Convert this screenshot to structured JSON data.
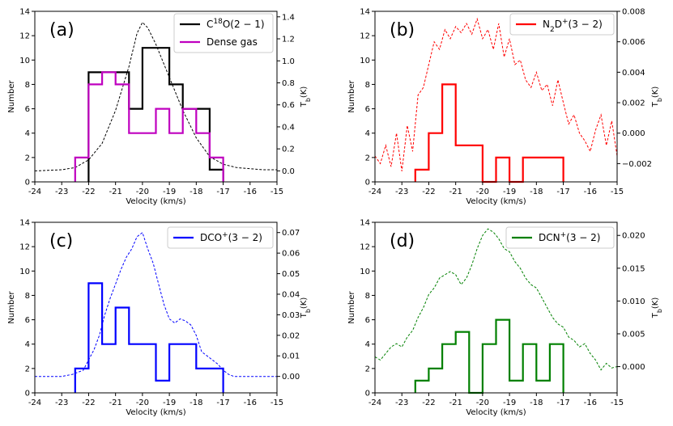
{
  "chart_data": [
    {
      "type": "histogram+line",
      "panel": "(a)",
      "xlabel": "Velocity (km/s)",
      "ylabel": "Number",
      "y2label": "T_b(K)",
      "xlim": [
        -24,
        -15
      ],
      "ylim": [
        0,
        14
      ],
      "y2lim": [
        -0.1,
        1.45
      ],
      "xticks": [
        "-24",
        "-23",
        "-22",
        "-21",
        "-20",
        "-19",
        "-18",
        "-17",
        "-16",
        "-15"
      ],
      "yticks": [
        "0",
        "2",
        "4",
        "6",
        "8",
        "10",
        "12",
        "14"
      ],
      "y2ticks": [
        "0.0",
        "0.2",
        "0.4",
        "0.6",
        "0.8",
        "1.0",
        "1.2",
        "1.4"
      ],
      "hist": [
        {
          "name": "C18O(2−1)",
          "color": "#000000",
          "edges": [
            -22,
            -21,
            -20.5,
            -20,
            -19,
            -18.5,
            -17.5,
            -17
          ],
          "values": [
            9,
            9,
            6,
            11,
            8,
            6,
            1
          ]
        },
        {
          "name": "Dense gas",
          "color": "#bf00bf",
          "edges": [
            -22.5,
            -22,
            -21.5,
            -21,
            -20.5,
            -20,
            -19.5,
            -19,
            -18.5,
            -18,
            -17.5,
            -17
          ],
          "values": [
            2,
            8,
            9,
            8,
            4,
            4,
            6,
            4,
            6,
            4,
            2
          ]
        }
      ],
      "line": {
        "name": "C18O spectrum",
        "color": "#000000",
        "x": [
          -24,
          -23,
          -22.5,
          -22,
          -21.5,
          -21,
          -20.5,
          -20.2,
          -20,
          -19.8,
          -19.5,
          -19,
          -18.5,
          -18,
          -17.5,
          -17,
          -16.5,
          -16,
          -15.5,
          -15
        ],
        "y": [
          0.0,
          0.01,
          0.03,
          0.1,
          0.25,
          0.55,
          0.95,
          1.25,
          1.35,
          1.3,
          1.15,
          0.85,
          0.55,
          0.3,
          0.13,
          0.06,
          0.03,
          0.02,
          0.01,
          0.01
        ]
      },
      "legend": [
        {
          "label_main": "C",
          "label_sup": "18",
          "label_rest": "O(2 − 1)",
          "color": "#000000"
        },
        {
          "label_main": "Dense gas",
          "label_sup": "",
          "label_rest": "",
          "color": "#bf00bf"
        }
      ]
    },
    {
      "type": "histogram+line",
      "panel": "(b)",
      "xlabel": "Velocity (km/s)",
      "ylabel": "Number",
      "y2label": "T_b(K)",
      "xlim": [
        -24,
        -15
      ],
      "ylim": [
        0,
        14
      ],
      "y2lim": [
        -0.0032,
        0.008
      ],
      "xticks": [
        "-24",
        "-23",
        "-22",
        "-21",
        "-20",
        "-19",
        "-18",
        "-17",
        "-16",
        "-15"
      ],
      "yticks": [
        "0",
        "2",
        "4",
        "6",
        "8",
        "10",
        "12",
        "14"
      ],
      "y2ticks": [
        "−0.002",
        "0.000",
        "0.002",
        "0.004",
        "0.006",
        "0.008"
      ],
      "hist": [
        {
          "name": "N2D+(3−2)",
          "color": "#ff0000",
          "edges": [
            -22.5,
            -22,
            -21.5,
            -21,
            -20,
            -19.5,
            -19,
            -18.5,
            -17
          ],
          "values": [
            1,
            4,
            8,
            3,
            0,
            2,
            0,
            2
          ]
        }
      ],
      "line": {
        "name": "N2D+ spectrum",
        "color": "#ff0000",
        "x": [
          -24,
          -23.8,
          -23.6,
          -23.4,
          -23.2,
          -23,
          -22.8,
          -22.6,
          -22.4,
          -22.2,
          -22,
          -21.8,
          -21.6,
          -21.4,
          -21.2,
          -21,
          -20.8,
          -20.6,
          -20.4,
          -20.2,
          -20,
          -19.8,
          -19.6,
          -19.4,
          -19.2,
          -19,
          -18.8,
          -18.6,
          -18.4,
          -18.2,
          -18,
          -17.8,
          -17.6,
          -17.4,
          -17.2,
          -17,
          -16.8,
          -16.6,
          -16.4,
          -16.2,
          -16,
          -15.8,
          -15.6,
          -15.4,
          -15.2,
          -15
        ],
        "y": [
          -0.0015,
          -0.002,
          -0.0008,
          -0.0022,
          0.0,
          -0.0025,
          0.0005,
          -0.0012,
          0.0025,
          0.003,
          0.0045,
          0.006,
          0.0055,
          0.0068,
          0.0062,
          0.007,
          0.0066,
          0.0072,
          0.0065,
          0.0075,
          0.0062,
          0.0068,
          0.0055,
          0.0072,
          0.005,
          0.0062,
          0.0045,
          0.0048,
          0.0035,
          0.003,
          0.004,
          0.0028,
          0.0032,
          0.0018,
          0.0035,
          0.002,
          0.0006,
          0.0012,
          0.0,
          -0.0005,
          -0.0012,
          0.0002,
          0.0012,
          -0.0008,
          0.0008,
          -0.0015
        ]
      },
      "legend": [
        {
          "label_main": "N",
          "label_sub": "2",
          "label_rest": "D",
          "label_sup": "+",
          "label_end": "(3 − 2)",
          "color": "#ff0000"
        }
      ]
    },
    {
      "type": "histogram+line",
      "panel": "(c)",
      "xlabel": "Velocity (km/s)",
      "ylabel": "Number",
      "y2label": "T_b(K)",
      "xlim": [
        -24,
        -15
      ],
      "ylim": [
        0,
        14
      ],
      "y2lim": [
        -0.008,
        0.075
      ],
      "xticks": [
        "-24",
        "-23",
        "-22",
        "-21",
        "-20",
        "-19",
        "-18",
        "-17",
        "-16",
        "-15"
      ],
      "yticks": [
        "0",
        "2",
        "4",
        "6",
        "8",
        "10",
        "12",
        "14"
      ],
      "y2ticks": [
        "0.00",
        "0.01",
        "0.02",
        "0.03",
        "0.04",
        "0.05",
        "0.06",
        "0.07"
      ],
      "hist": [
        {
          "name": "DCO+(3−2)",
          "color": "#0000ff",
          "edges": [
            -22.5,
            -22,
            -21.5,
            -21,
            -20.5,
            -20,
            -19.5,
            -19,
            -18.5,
            -18,
            -17.5,
            -17
          ],
          "values": [
            2,
            9,
            4,
            7,
            4,
            4,
            1,
            4,
            4,
            2,
            2
          ]
        }
      ],
      "line": {
        "name": "DCO+ spectrum",
        "color": "#0000ff",
        "x": [
          -24,
          -23.5,
          -23,
          -22.6,
          -22.2,
          -22,
          -21.8,
          -21.6,
          -21.4,
          -21.2,
          -21,
          -20.8,
          -20.6,
          -20.4,
          -20.2,
          -20,
          -19.8,
          -19.6,
          -19.4,
          -19.2,
          -19,
          -18.8,
          -18.6,
          -18.4,
          -18.2,
          -18,
          -17.8,
          -17.6,
          -17.4,
          -17.2,
          -17,
          -16.8,
          -16.6,
          -16.4,
          -16,
          -15.5,
          -15
        ],
        "y": [
          0.0,
          0.0,
          0.0,
          0.001,
          0.003,
          0.008,
          0.013,
          0.02,
          0.03,
          0.038,
          0.045,
          0.052,
          0.058,
          0.062,
          0.068,
          0.07,
          0.062,
          0.055,
          0.045,
          0.035,
          0.028,
          0.026,
          0.028,
          0.027,
          0.025,
          0.02,
          0.012,
          0.01,
          0.008,
          0.006,
          0.003,
          0.001,
          0.0,
          0.0,
          0.0,
          0.0,
          0.0
        ]
      },
      "legend": [
        {
          "label_main": "DCO",
          "label_sup": "+",
          "label_rest": "(3 − 2)",
          "color": "#0000ff"
        }
      ]
    },
    {
      "type": "histogram+line",
      "panel": "(d)",
      "xlabel": "Velocity (km/s)",
      "ylabel": "Number",
      "y2label": "T_b(K)",
      "xlim": [
        -24,
        -15
      ],
      "ylim": [
        0,
        14
      ],
      "y2lim": [
        -0.004,
        0.022
      ],
      "xticks": [
        "-24",
        "-23",
        "-22",
        "-21",
        "-20",
        "-19",
        "-18",
        "-17",
        "-16",
        "-15"
      ],
      "yticks": [
        "0",
        "2",
        "4",
        "6",
        "8",
        "10",
        "12",
        "14"
      ],
      "y2ticks": [
        "0.000",
        "0.005",
        "0.010",
        "0.015",
        "0.020"
      ],
      "hist": [
        {
          "name": "DCN+(3−2)",
          "color": "#008000",
          "edges": [
            -22.5,
            -22,
            -21.5,
            -21,
            -20.5,
            -20,
            -19.5,
            -19,
            -18.5,
            -18,
            -17.5,
            -17
          ],
          "values": [
            1,
            2,
            4,
            5,
            0,
            4,
            6,
            1,
            4,
            1,
            4
          ]
        }
      ],
      "line": {
        "name": "DCN+ spectrum",
        "color": "#008000",
        "x": [
          -24,
          -23.8,
          -23.6,
          -23.4,
          -23.2,
          -23,
          -22.8,
          -22.6,
          -22.4,
          -22.2,
          -22,
          -21.8,
          -21.6,
          -21.4,
          -21.2,
          -21,
          -20.8,
          -20.6,
          -20.4,
          -20.2,
          -20,
          -19.8,
          -19.6,
          -19.4,
          -19.2,
          -19,
          -18.8,
          -18.6,
          -18.4,
          -18.2,
          -18,
          -17.8,
          -17.6,
          -17.4,
          -17.2,
          -17,
          -16.8,
          -16.6,
          -16.4,
          -16.2,
          -16,
          -15.8,
          -15.6,
          -15.4,
          -15.2,
          -15
        ],
        "y": [
          0.0015,
          0.001,
          0.002,
          0.003,
          0.0035,
          0.003,
          0.0045,
          0.0055,
          0.0075,
          0.009,
          0.011,
          0.012,
          0.0135,
          0.014,
          0.0145,
          0.014,
          0.0125,
          0.0135,
          0.0155,
          0.018,
          0.02,
          0.021,
          0.0205,
          0.0195,
          0.018,
          0.0175,
          0.016,
          0.015,
          0.0135,
          0.0125,
          0.012,
          0.0105,
          0.009,
          0.0075,
          0.0065,
          0.006,
          0.0045,
          0.004,
          0.003,
          0.0035,
          0.002,
          0.001,
          -0.0005,
          0.0005,
          -0.0002,
          0.0
        ]
      },
      "legend": [
        {
          "label_main": "DCN",
          "label_sup": "+",
          "label_rest": "(3 − 2)",
          "color": "#008000"
        }
      ]
    }
  ]
}
